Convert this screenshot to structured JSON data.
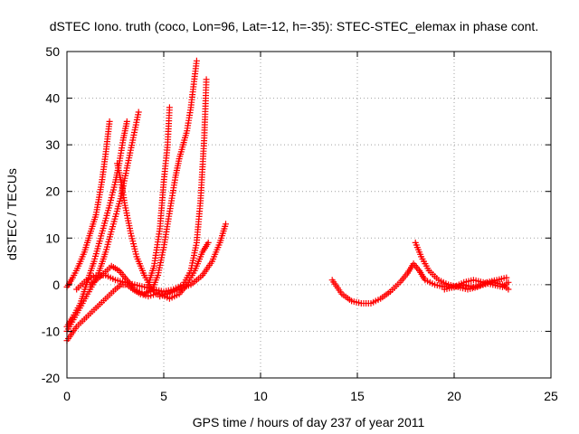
{
  "chart_data": {
    "type": "scatter",
    "title": "dSTEC Iono. truth (coco, Lon=96, Lat=-12, h=-35): STEC-STEC_elemax in phase cont.",
    "xlabel": "GPS time / hours of day 237 of year 2011",
    "ylabel": "dSTEC  / TECUs",
    "xlim": [
      0,
      25
    ],
    "ylim": [
      -20,
      50
    ],
    "xticks": [
      0,
      5,
      10,
      15,
      20,
      25
    ],
    "yticks": [
      -20,
      -10,
      0,
      10,
      20,
      30,
      40,
      50
    ],
    "grid": true,
    "marker": "plus",
    "color": "#ff0000",
    "arcs": [
      [
        [
          0.0,
          -0.5
        ],
        [
          0.3,
          1.5
        ],
        [
          0.6,
          4
        ],
        [
          0.9,
          7
        ],
        [
          1.2,
          11
        ],
        [
          1.5,
          15
        ],
        [
          1.8,
          22
        ],
        [
          2.0,
          28
        ],
        [
          2.2,
          35
        ]
      ],
      [
        [
          0.0,
          -9
        ],
        [
          0.3,
          -7
        ],
        [
          0.7,
          -4
        ],
        [
          1.0,
          0
        ],
        [
          1.4,
          5
        ],
        [
          1.8,
          11
        ],
        [
          2.2,
          17
        ],
        [
          2.5,
          22
        ],
        [
          2.7,
          26
        ],
        [
          2.9,
          31
        ],
        [
          3.1,
          35
        ]
      ],
      [
        [
          0.0,
          -10
        ],
        [
          0.4,
          -7
        ],
        [
          0.8,
          -4
        ],
        [
          1.2,
          -1
        ],
        [
          1.6,
          2
        ],
        [
          2.0,
          7
        ],
        [
          2.4,
          13
        ],
        [
          2.8,
          19
        ],
        [
          3.1,
          25
        ],
        [
          3.4,
          31
        ],
        [
          3.7,
          37
        ]
      ],
      [
        [
          0.0,
          -12
        ],
        [
          0.5,
          -9
        ],
        [
          1.0,
          -7
        ],
        [
          1.5,
          -5
        ],
        [
          2.0,
          -3
        ],
        [
          2.5,
          -1
        ],
        [
          2.8,
          0
        ],
        [
          3.1,
          0
        ],
        [
          3.4,
          -1
        ],
        [
          3.8,
          -2
        ],
        [
          4.2,
          -2.5
        ],
        [
          4.6,
          -2
        ]
      ],
      [
        [
          2.6,
          26
        ],
        [
          2.8,
          22
        ],
        [
          3.0,
          17
        ],
        [
          3.3,
          11
        ],
        [
          3.6,
          6
        ],
        [
          4.0,
          2
        ],
        [
          4.4,
          -1
        ],
        [
          4.8,
          -2.5
        ],
        [
          5.2,
          -2
        ]
      ],
      [
        [
          1.2,
          0
        ],
        [
          1.8,
          2
        ],
        [
          2.3,
          4
        ],
        [
          2.7,
          3
        ],
        [
          3.1,
          1
        ],
        [
          3.5,
          -1
        ],
        [
          4.0,
          -2
        ],
        [
          4.4,
          -1
        ],
        [
          4.7,
          2
        ],
        [
          5.0,
          8
        ],
        [
          5.2,
          13
        ],
        [
          5.4,
          18
        ],
        [
          5.6,
          23
        ],
        [
          5.8,
          27
        ],
        [
          6.0,
          30
        ],
        [
          6.2,
          33
        ],
        [
          6.4,
          38
        ],
        [
          6.7,
          48
        ]
      ],
      [
        [
          0.5,
          -1
        ],
        [
          1.0,
          1
        ],
        [
          1.5,
          2
        ],
        [
          2.0,
          2
        ],
        [
          2.5,
          1
        ],
        [
          3.0,
          0.5
        ],
        [
          3.5,
          0
        ],
        [
          4.0,
          -0.5
        ],
        [
          4.5,
          -1
        ],
        [
          5.0,
          -1.5
        ],
        [
          5.5,
          -1
        ],
        [
          6.0,
          0
        ],
        [
          6.4,
          3
        ],
        [
          6.7,
          9
        ],
        [
          6.9,
          18
        ],
        [
          7.1,
          32
        ],
        [
          7.2,
          44
        ]
      ],
      [
        [
          4.2,
          0
        ],
        [
          4.5,
          4
        ],
        [
          4.8,
          12
        ],
        [
          5.0,
          22
        ],
        [
          5.2,
          30
        ],
        [
          5.3,
          38
        ]
      ],
      [
        [
          4.8,
          -2
        ],
        [
          5.3,
          -3
        ],
        [
          5.8,
          -2
        ],
        [
          6.2,
          0
        ],
        [
          6.6,
          3
        ],
        [
          7.0,
          7
        ],
        [
          7.3,
          9
        ]
      ],
      [
        [
          5.2,
          -2
        ],
        [
          5.8,
          -1
        ],
        [
          6.4,
          0
        ],
        [
          7.0,
          2
        ],
        [
          7.5,
          5
        ],
        [
          7.9,
          9
        ],
        [
          8.2,
          13
        ]
      ],
      [
        [
          13.7,
          1
        ],
        [
          14.2,
          -2
        ],
        [
          14.7,
          -3.5
        ],
        [
          15.2,
          -4
        ],
        [
          15.7,
          -4
        ],
        [
          16.2,
          -3
        ],
        [
          16.7,
          -1.5
        ],
        [
          17.2,
          0.5
        ],
        [
          17.6,
          2.5
        ],
        [
          17.9,
          4.5
        ],
        [
          18.2,
          3
        ],
        [
          18.5,
          1
        ],
        [
          19.0,
          0
        ],
        [
          19.5,
          -0.5
        ],
        [
          20.0,
          -0.5
        ],
        [
          20.5,
          0
        ],
        [
          21.0,
          -0.5
        ],
        [
          21.5,
          0
        ],
        [
          22.0,
          0.5
        ],
        [
          22.5,
          0
        ],
        [
          22.8,
          -1
        ]
      ],
      [
        [
          18.0,
          9
        ],
        [
          18.3,
          6
        ],
        [
          18.7,
          3
        ],
        [
          19.2,
          1
        ],
        [
          19.7,
          0
        ],
        [
          20.2,
          -0.5
        ],
        [
          20.7,
          -1
        ],
        [
          21.2,
          -0.5
        ],
        [
          21.7,
          0.5
        ],
        [
          22.2,
          1
        ],
        [
          22.7,
          1.5
        ]
      ],
      [
        [
          19.5,
          -1
        ],
        [
          20.0,
          -0.5
        ],
        [
          20.5,
          0.5
        ],
        [
          21.0,
          1
        ],
        [
          21.5,
          0.5
        ],
        [
          22.0,
          0
        ],
        [
          22.5,
          -0.5
        ],
        [
          22.8,
          0.5
        ]
      ]
    ]
  }
}
